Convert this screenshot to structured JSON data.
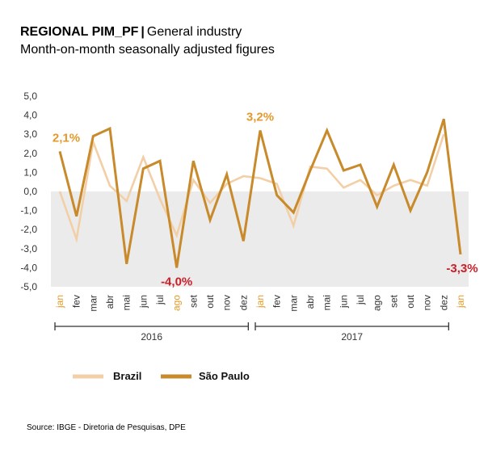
{
  "header": {
    "title_bold": "REGIONAL PIM_PF",
    "title_sep": "|",
    "title_rest": "General industry",
    "subtitle": "Month-on-month seasonally adjusted figures"
  },
  "source": "Source: IBGE - Diretoria de Pesquisas, DPE",
  "chart_data": {
    "type": "line",
    "categories": [
      "jan",
      "fev",
      "mar",
      "abr",
      "mai",
      "jun",
      "jul",
      "ago",
      "set",
      "out",
      "nov",
      "dez",
      "jan",
      "fev",
      "mar",
      "abr",
      "mai",
      "jun",
      "jul",
      "ago",
      "set",
      "out",
      "nov",
      "dez",
      "jan"
    ],
    "highlight_categories": [
      0,
      7,
      12,
      24
    ],
    "years": [
      {
        "label": "2016",
        "from": 0,
        "to": 11
      },
      {
        "label": "2017",
        "from": 12,
        "to": 23
      }
    ],
    "ylim": [
      -5,
      5
    ],
    "yticks": [
      "5,0",
      "4,0",
      "3,0",
      "2,0",
      "1,0",
      "0,0",
      "-1,0",
      "-2,0",
      "-3,0",
      "-4,0",
      "-5,0"
    ],
    "grid": false,
    "legend": "bottom-left",
    "series": [
      {
        "name": "Brazil",
        "color": "#f2cfa6",
        "values": [
          0.0,
          -2.5,
          2.6,
          0.3,
          -0.5,
          1.8,
          -0.4,
          -2.3,
          0.6,
          -0.6,
          0.4,
          0.8,
          0.7,
          0.4,
          -1.8,
          1.3,
          1.2,
          0.2,
          0.6,
          -0.2,
          0.3,
          0.6,
          0.3,
          3.0,
          null
        ]
      },
      {
        "name": "São Paulo",
        "color": "#c88a2a",
        "values": [
          2.1,
          -1.3,
          2.9,
          3.3,
          -3.8,
          1.2,
          1.6,
          -4.0,
          1.6,
          -1.5,
          0.9,
          -2.6,
          3.2,
          -0.2,
          -1.1,
          1.1,
          3.2,
          1.1,
          1.4,
          -0.8,
          1.4,
          -1.0,
          1.0,
          3.8,
          -3.3
        ]
      }
    ],
    "annotations": [
      {
        "text": "2,1%",
        "index": 0,
        "value": 2.1,
        "color": "#e39a2a",
        "pos": "above"
      },
      {
        "text": "-4,0%",
        "index": 7,
        "value": -4.0,
        "color": "#c8202a",
        "pos": "below"
      },
      {
        "text": "3,2%",
        "index": 12,
        "value": 3.2,
        "color": "#e39a2a",
        "pos": "above"
      },
      {
        "text": "-3,3%",
        "index": 24,
        "value": -3.3,
        "color": "#c8202a",
        "pos": "below"
      }
    ]
  }
}
